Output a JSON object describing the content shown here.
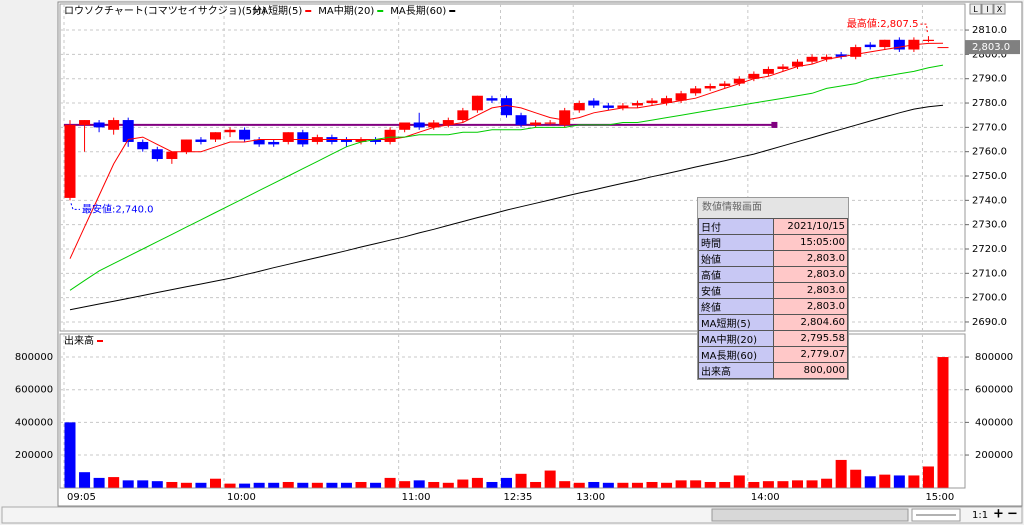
{
  "chart_data": {
    "type": "candlestick",
    "title": "ロウソクチャート(コマツセイサクジョ)(5分)",
    "categories": [
      "09:05",
      null,
      null,
      null,
      null,
      null,
      null,
      null,
      null,
      null,
      null,
      "10:00",
      null,
      null,
      null,
      null,
      null,
      null,
      null,
      null,
      null,
      null,
      null,
      "11:00",
      null,
      null,
      null,
      null,
      null,
      null,
      "12:35",
      null,
      null,
      null,
      null,
      "13:00",
      null,
      null,
      null,
      null,
      null,
      null,
      null,
      null,
      null,
      null,
      null,
      "14:00",
      null,
      null,
      null,
      null,
      null,
      null,
      null,
      null,
      null,
      null,
      null,
      "15:00",
      null
    ],
    "open": [
      2741,
      2771,
      2772,
      2769,
      2773,
      2764,
      2761,
      2757,
      2760,
      2765,
      2765,
      2768,
      2769,
      2765,
      2764,
      2764,
      2768,
      2764,
      2766,
      2765,
      2764,
      2765,
      2764,
      2769,
      2772,
      2770,
      2771,
      2773,
      2777,
      2782,
      2782,
      2775,
      2771,
      2771.5,
      2771,
      2777,
      2781,
      2779,
      2778,
      2779,
      2780,
      2780,
      2781,
      2784,
      2786,
      2787,
      2788,
      2790,
      2792,
      2794,
      2795,
      2797,
      2798,
      2800,
      2799,
      2804,
      2803,
      2806,
      2802,
      2805.5,
      2803
    ],
    "high": [
      2773,
      2773,
      2773,
      2774,
      2774,
      2765,
      2762,
      2760,
      2765,
      2766,
      2768,
      2770,
      2770,
      2766,
      2765,
      2768,
      2769,
      2767,
      2767,
      2766,
      2766,
      2766,
      2770,
      2772,
      2776,
      2773,
      2774,
      2778,
      2783,
      2783,
      2783,
      2776,
      2773,
      2773,
      2778,
      2781,
      2782,
      2780,
      2780,
      2781,
      2782,
      2783,
      2785,
      2787,
      2788,
      2789,
      2791,
      2793,
      2795,
      2796,
      2798,
      2800,
      2800,
      2801,
      2804,
      2805,
      2806,
      2807,
      2807,
      2807.5,
      2803
    ],
    "low": [
      2740,
      2760,
      2768,
      2767,
      2762,
      2760,
      2756,
      2755,
      2759,
      2763,
      2764,
      2766,
      2764,
      2762,
      2762,
      2763,
      2762,
      2763,
      2763,
      2762,
      2763,
      2763,
      2763,
      2768,
      2769,
      2769,
      2770,
      2772,
      2776,
      2780,
      2774,
      2770,
      2770,
      2771,
      2770,
      2776,
      2778,
      2777,
      2777,
      2778,
      2779,
      2779,
      2780,
      2783,
      2785,
      2786,
      2787,
      2789,
      2791,
      2793,
      2794,
      2796,
      2797,
      2798,
      2798,
      2802,
      2802,
      2801,
      2801,
      2805,
      2803
    ],
    "close": [
      2771,
      2773,
      2770,
      2773,
      2764,
      2761,
      2757,
      2760,
      2765,
      2764,
      2768,
      2769,
      2765,
      2763,
      2763,
      2768,
      2763,
      2766,
      2764,
      2764,
      2765,
      2764,
      2769,
      2772,
      2770,
      2772,
      2773,
      2777,
      2783,
      2781,
      2775,
      2771,
      2772,
      2772,
      2777,
      2780,
      2779,
      2778,
      2779,
      2780,
      2781,
      2782,
      2784,
      2786,
      2787,
      2788,
      2790,
      2792,
      2794,
      2795,
      2797,
      2799,
      2799,
      2799,
      2803,
      2803,
      2806,
      2802,
      2806,
      2806,
      2803
    ],
    "up_color": "#ff0000",
    "down_color": "#0000ff",
    "ylim": [
      2686.7,
      2820.3
    ],
    "yticks": [
      {
        "value": 2690,
        "label": "2690.0"
      },
      {
        "value": 2700,
        "label": "2700.0"
      },
      {
        "value": 2710,
        "label": "2710.0"
      },
      {
        "value": 2720,
        "label": "2720.0"
      },
      {
        "value": 2730,
        "label": "2730.0"
      },
      {
        "value": 2740,
        "label": "2740.0"
      },
      {
        "value": 2750,
        "label": "2750.0"
      },
      {
        "value": 2760,
        "label": "2760.0"
      },
      {
        "value": 2770,
        "label": "2770.0"
      },
      {
        "value": 2780,
        "label": "2780.0"
      },
      {
        "value": 2790,
        "label": "2790.0"
      },
      {
        "value": 2800,
        "label": "2800.0"
      },
      {
        "value": 2810,
        "label": "2810.0"
      }
    ],
    "grid": true,
    "series": [
      {
        "name": "MA短期(5)",
        "color": "#ff0000",
        "values": [
          2716,
          2729,
          2742,
          2755,
          2765,
          2766,
          2763,
          2760,
          2760,
          2760,
          2762,
          2764,
          2764,
          2765,
          2765,
          2765,
          2765,
          2765,
          2765,
          2765,
          2765,
          2765,
          2765,
          2766,
          2768,
          2770,
          2771,
          2772,
          2775,
          2778,
          2779,
          2778,
          2776,
          2774,
          2773,
          2774,
          2776,
          2777,
          2778,
          2778,
          2779,
          2780,
          2781,
          2782,
          2784,
          2786,
          2788,
          2790,
          2791,
          2793,
          2795,
          2796,
          2798,
          2799,
          2800,
          2801,
          2802,
          2803,
          2804,
          2804.5,
          2804.6
        ]
      },
      {
        "name": "MA中期(20)",
        "color": "#00cc00",
        "values": [
          2703,
          2707,
          2711,
          2714,
          2717,
          2720,
          2723,
          2726,
          2729,
          2732,
          2735,
          2738,
          2741,
          2744,
          2747,
          2750,
          2753,
          2756,
          2759,
          2762,
          2764,
          2765,
          2766,
          2766,
          2767,
          2767,
          2767,
          2768,
          2768,
          2769,
          2769,
          2769,
          2770,
          2770,
          2770,
          2771,
          2771,
          2771,
          2772,
          2772,
          2773,
          2774,
          2775,
          2776,
          2777,
          2778,
          2779,
          2780,
          2781,
          2782,
          2783,
          2784,
          2786,
          2787,
          2788,
          2790,
          2791,
          2792,
          2793,
          2794.5,
          2795.58
        ]
      },
      {
        "name": "MA長期(60)",
        "color": "#000000",
        "values": [
          2695,
          2696.2,
          2697.4,
          2698.5,
          2699.7,
          2700.9,
          2702.1,
          2703.3,
          2704.5,
          2705.6,
          2706.8,
          2708,
          2709.4,
          2710.8,
          2712.3,
          2713.7,
          2715.1,
          2716.5,
          2717.9,
          2719.3,
          2720.8,
          2722.2,
          2723.6,
          2725,
          2726.6,
          2728.1,
          2729.7,
          2731.3,
          2732.9,
          2734.4,
          2736,
          2737.4,
          2738.8,
          2740.2,
          2741.6,
          2743,
          2744.3,
          2745.7,
          2747,
          2748.3,
          2749.7,
          2751,
          2752.3,
          2753.7,
          2755,
          2756.3,
          2757.7,
          2759,
          2760.7,
          2762.4,
          2764.1,
          2765.8,
          2767.5,
          2769.2,
          2770.9,
          2772.6,
          2774.3,
          2776,
          2777.5,
          2778.5,
          2779.07
        ]
      }
    ],
    "annotations": [
      {
        "label": "最高値:2,807.5",
        "value": 2807.5,
        "color": "#ff0000"
      },
      {
        "label": "最安値:2,740.0",
        "value": 2740,
        "color": "#0000ff"
      }
    ],
    "last_price": {
      "value": 2803,
      "label": "2,803.0"
    },
    "trend_line": {
      "value": 2771,
      "start": 0,
      "end": 48,
      "color": "#800080"
    },
    "volume": {
      "title": "出来高",
      "color": "#ff0000",
      "values": [
        400000,
        95000,
        60000,
        65000,
        45000,
        45000,
        40000,
        35000,
        30000,
        30000,
        55000,
        25000,
        25000,
        30000,
        30000,
        35000,
        30000,
        30000,
        30000,
        30000,
        35000,
        30000,
        60000,
        40000,
        45000,
        35000,
        30000,
        50000,
        60000,
        35000,
        60000,
        85000,
        35000,
        105000,
        40000,
        30000,
        35000,
        30000,
        30000,
        30000,
        35000,
        30000,
        45000,
        45000,
        35000,
        35000,
        75000,
        35000,
        40000,
        40000,
        45000,
        45000,
        55000,
        170000,
        110000,
        70000,
        80000,
        75000,
        75000,
        130000,
        800000
      ],
      "colors": [
        "#0000ff",
        "#0000ff",
        "#0000ff",
        "#ff0000",
        "#0000ff",
        "#0000ff",
        "#0000ff",
        "#ff0000",
        "#ff0000",
        "#0000ff",
        "#ff0000",
        "#ff0000",
        "#0000ff",
        "#0000ff",
        "#0000ff",
        "#ff0000",
        "#0000ff",
        "#ff0000",
        "#0000ff",
        "#0000ff",
        "#ff0000",
        "#0000ff",
        "#ff0000",
        "#ff0000",
        "#0000ff",
        "#ff0000",
        "#ff0000",
        "#ff0000",
        "#ff0000",
        "#0000ff",
        "#0000ff",
        "#ff0000",
        "#ff0000",
        "#ff0000",
        "#ff0000",
        "#ff0000",
        "#0000ff",
        "#0000ff",
        "#ff0000",
        "#ff0000",
        "#ff0000",
        "#ff0000",
        "#ff0000",
        "#ff0000",
        "#ff0000",
        "#ff0000",
        "#ff0000",
        "#ff0000",
        "#ff0000",
        "#ff0000",
        "#ff0000",
        "#ff0000",
        "#ff0000",
        "#ff0000",
        "#ff0000",
        "#0000ff",
        "#ff0000",
        "#0000ff",
        "#ff0000",
        "#ff0000",
        "#ff0000"
      ],
      "ylim": [
        0,
        935000
      ],
      "yticks": [
        200000,
        400000,
        600000,
        800000
      ]
    }
  },
  "info_panel": {
    "title": "数値情報画面",
    "rows": [
      [
        "日付",
        "2021/10/15"
      ],
      [
        "時間",
        "15:05:00"
      ],
      [
        "始値",
        "2,803.0"
      ],
      [
        "高値",
        "2,803.0"
      ],
      [
        "安値",
        "2,803.0"
      ],
      [
        "終値",
        "2,803.0"
      ],
      [
        "MA短期(5)",
        "2,804.60"
      ],
      [
        "MA中期(20)",
        "2,795.58"
      ],
      [
        "MA長期(60)",
        "2,779.07"
      ],
      [
        "出来高",
        "800,000"
      ]
    ]
  },
  "zoom_label": "1:1",
  "window_buttons": [
    "L",
    "I",
    "X"
  ]
}
